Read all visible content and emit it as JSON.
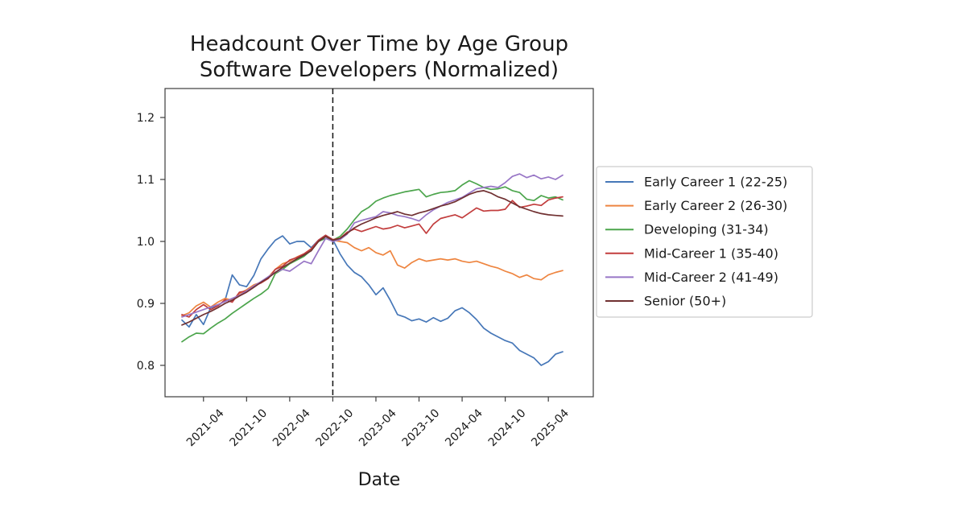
{
  "page": {
    "background": "#ffffff",
    "axis_color": "#3c3c3c",
    "text_color": "#1a1a1a",
    "legend_border_color": "#cccccc"
  },
  "chart_data": {
    "type": "line",
    "title": "Headcount Over Time by Age Group",
    "subtitle": "Software Developers (Normalized)",
    "xlabel": "Date",
    "ylabel": "",
    "grid": false,
    "legend_position": "right-outside",
    "ylim": [
      0.75,
      1.25
    ],
    "y_ticks": [
      0.8,
      0.9,
      1.0,
      1.1,
      1.2
    ],
    "x_tick_labels": [
      "2021-04",
      "2021-10",
      "2022-04",
      "2022-10",
      "2023-04",
      "2023-10",
      "2024-04",
      "2024-10",
      "2025-04"
    ],
    "event_line": {
      "date": "2022-10",
      "style": "dashed",
      "color": "#111111"
    },
    "x": [
      "2021-01",
      "2021-02",
      "2021-03",
      "2021-04",
      "2021-05",
      "2021-06",
      "2021-07",
      "2021-08",
      "2021-09",
      "2021-10",
      "2021-11",
      "2021-12",
      "2022-01",
      "2022-02",
      "2022-03",
      "2022-04",
      "2022-05",
      "2022-06",
      "2022-07",
      "2022-08",
      "2022-09",
      "2022-10",
      "2022-11",
      "2022-12",
      "2023-01",
      "2023-02",
      "2023-03",
      "2023-04",
      "2023-05",
      "2023-06",
      "2023-07",
      "2023-08",
      "2023-09",
      "2023-10",
      "2023-11",
      "2023-12",
      "2024-01",
      "2024-02",
      "2024-03",
      "2024-04",
      "2024-05",
      "2024-06",
      "2024-07",
      "2024-08",
      "2024-09",
      "2024-10",
      "2024-11",
      "2024-12",
      "2025-01",
      "2025-02",
      "2025-03",
      "2025-04",
      "2025-05",
      "2025-06"
    ],
    "series": [
      {
        "name": "Early Career 1 (22-25)",
        "color": "#4677b8",
        "values": [
          0.873,
          0.862,
          0.882,
          0.866,
          0.893,
          0.896,
          0.905,
          0.946,
          0.93,
          0.927,
          0.945,
          0.972,
          0.988,
          1.002,
          1.009,
          0.996,
          1.0,
          1.0,
          0.99,
          1.002,
          1.01,
          1.003,
          0.98,
          0.962,
          0.95,
          0.943,
          0.93,
          0.914,
          0.925,
          0.905,
          0.882,
          0.878,
          0.872,
          0.875,
          0.87,
          0.877,
          0.871,
          0.876,
          0.888,
          0.893,
          0.885,
          0.874,
          0.86,
          0.852,
          0.846,
          0.84,
          0.836,
          0.824,
          0.818,
          0.812,
          0.8,
          0.806,
          0.818,
          0.822
        ]
      },
      {
        "name": "Early Career 2 (26-30)",
        "color": "#ee8540",
        "values": [
          0.88,
          0.885,
          0.896,
          0.902,
          0.894,
          0.902,
          0.908,
          0.905,
          0.916,
          0.922,
          0.93,
          0.934,
          0.942,
          0.955,
          0.964,
          0.968,
          0.975,
          0.98,
          0.988,
          1.0,
          1.008,
          1.002,
          1.0,
          0.998,
          0.99,
          0.985,
          0.99,
          0.982,
          0.978,
          0.985,
          0.962,
          0.957,
          0.966,
          0.972,
          0.968,
          0.97,
          0.972,
          0.97,
          0.972,
          0.968,
          0.966,
          0.968,
          0.964,
          0.96,
          0.957,
          0.952,
          0.948,
          0.942,
          0.946,
          0.94,
          0.938,
          0.946,
          0.95,
          0.953
        ]
      },
      {
        "name": "Developing (31-34)",
        "color": "#4ca54c",
        "values": [
          0.838,
          0.846,
          0.852,
          0.851,
          0.86,
          0.868,
          0.875,
          0.884,
          0.892,
          0.9,
          0.908,
          0.915,
          0.924,
          0.948,
          0.955,
          0.964,
          0.97,
          0.976,
          0.986,
          1.0,
          1.005,
          1.002,
          1.008,
          1.02,
          1.035,
          1.048,
          1.055,
          1.065,
          1.07,
          1.074,
          1.077,
          1.08,
          1.082,
          1.084,
          1.072,
          1.076,
          1.079,
          1.08,
          1.082,
          1.091,
          1.098,
          1.093,
          1.087,
          1.084,
          1.085,
          1.088,
          1.082,
          1.079,
          1.068,
          1.066,
          1.074,
          1.07,
          1.072,
          1.067
        ]
      },
      {
        "name": "Mid-Career 1 (35-40)",
        "color": "#c23d3d",
        "values": [
          0.882,
          0.878,
          0.89,
          0.898,
          0.89,
          0.896,
          0.906,
          0.902,
          0.918,
          0.92,
          0.928,
          0.933,
          0.94,
          0.955,
          0.96,
          0.97,
          0.974,
          0.98,
          0.988,
          1.002,
          1.01,
          1.003,
          1.005,
          1.015,
          1.02,
          1.016,
          1.02,
          1.024,
          1.02,
          1.022,
          1.026,
          1.022,
          1.025,
          1.028,
          1.013,
          1.028,
          1.037,
          1.04,
          1.043,
          1.038,
          1.046,
          1.054,
          1.049,
          1.05,
          1.05,
          1.052,
          1.066,
          1.055,
          1.057,
          1.06,
          1.058,
          1.067,
          1.07,
          1.072
        ]
      },
      {
        "name": "Mid-Career 2 (41-49)",
        "color": "#9876c6",
        "values": [
          0.878,
          0.882,
          0.886,
          0.89,
          0.894,
          0.898,
          0.903,
          0.908,
          0.913,
          0.92,
          0.928,
          0.935,
          0.943,
          0.95,
          0.955,
          0.952,
          0.96,
          0.968,
          0.964,
          0.985,
          1.005,
          1.0,
          1.003,
          1.012,
          1.03,
          1.034,
          1.037,
          1.04,
          1.048,
          1.046,
          1.042,
          1.04,
          1.037,
          1.033,
          1.043,
          1.051,
          1.057,
          1.063,
          1.067,
          1.071,
          1.078,
          1.085,
          1.087,
          1.089,
          1.087,
          1.095,
          1.105,
          1.109,
          1.103,
          1.107,
          1.101,
          1.104,
          1.1,
          1.107
        ]
      },
      {
        "name": "Senior (50+)",
        "color": "#703031",
        "values": [
          0.865,
          0.87,
          0.876,
          0.882,
          0.887,
          0.893,
          0.9,
          0.905,
          0.912,
          0.918,
          0.926,
          0.934,
          0.941,
          0.95,
          0.958,
          0.965,
          0.972,
          0.978,
          0.985,
          1.0,
          1.008,
          1.002,
          1.005,
          1.013,
          1.022,
          1.028,
          1.033,
          1.038,
          1.042,
          1.045,
          1.048,
          1.044,
          1.042,
          1.046,
          1.049,
          1.053,
          1.057,
          1.06,
          1.064,
          1.07,
          1.076,
          1.08,
          1.082,
          1.078,
          1.072,
          1.068,
          1.062,
          1.056,
          1.052,
          1.048,
          1.045,
          1.043,
          1.042,
          1.041
        ]
      }
    ]
  }
}
